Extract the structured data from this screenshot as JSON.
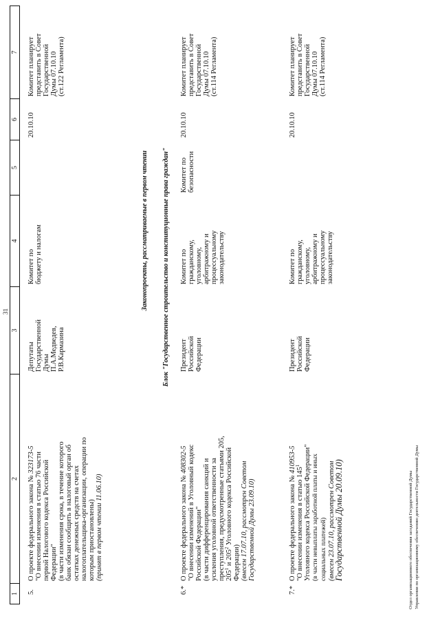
{
  "page_number": "31",
  "header": [
    "1",
    "2",
    "3",
    "4",
    "5",
    "6",
    "7"
  ],
  "section_heading": "Законопроекты, рассматриваемые в первом чтении",
  "block_heading": "Блок \"Государственное строительство и конституционные права граждан\"",
  "rows": [
    {
      "num": "5.",
      "bill": [
        [
          {
            "t": "О проекте федерального закона № "
          },
          {
            "t": "323173-5",
            "s": "i"
          }
        ],
        [
          {
            "t": "\"О внесении изменения в статью 76 части"
          }
        ],
        [
          {
            "t": "первой Налогового кодекса Российской"
          }
        ],
        [
          {
            "t": "Федерации\""
          }
        ],
        [
          {
            "t": "(в части изменения срока, в течение которого"
          }
        ],
        [
          {
            "t": "банк обязан сообщить в налоговый орган об"
          }
        ],
        [
          {
            "t": "остатках денежных средств на счетах"
          }
        ],
        [
          {
            "t": "налогоплательщика-организации, операции по"
          }
        ],
        [
          {
            "t": "которым приостановлены)"
          }
        ],
        [
          {
            "t": "(принят в первом чтении 11.06.10)",
            "s": "i"
          }
        ]
      ],
      "author": [
        "Депутаты",
        "Государственной",
        "Думы",
        "П.А.Медведев,",
        "Р.В.Кармазина"
      ],
      "committee": [
        "Комитет по",
        "бюджету и налогам"
      ],
      "co_committee": [],
      "date": [
        "20.10.10"
      ],
      "note": [
        "Комитет планирует",
        "представить в Совет",
        "Государственной",
        "Думы 07.10.10",
        "(ст.122 Регламента)"
      ]
    },
    {
      "num": "6.*",
      "bill": [
        [
          {
            "t": "О проекте федерального закона № "
          },
          {
            "t": "408302-5",
            "s": "i"
          }
        ],
        [
          {
            "t": "\"О внесении изменений в Уголовный кодекс"
          }
        ],
        [
          {
            "t": "Российской Федерации\""
          }
        ],
        [
          {
            "t": "(в части дифференцирования санкций и"
          }
        ],
        [
          {
            "t": "усиления уголовной ответственности за"
          }
        ],
        [
          {
            "t": "преступления, предусмотренные статьями 205,"
          }
        ],
        [
          {
            "t": "205"
          },
          {
            "t": "1",
            "s": "sup"
          },
          {
            "t": " и 205"
          },
          {
            "t": "2",
            "s": "sup"
          },
          {
            "t": " Уголовного кодекса Российской"
          }
        ],
        [
          {
            "t": "Федерации)"
          }
        ],
        [
          {
            "t": "(внесен 17.07.10, рассмотрен Советом",
            "s": "i"
          }
        ],
        [
          {
            "t": "Государственной Думы 23.09.10)",
            "s": "i"
          }
        ]
      ],
      "author": [
        "Президент",
        "Российской",
        "Федерации"
      ],
      "committee": [
        "Комитет по",
        "гражданскому,",
        "уголовному,",
        "арбитражному и",
        "процессуальному",
        "законодательству"
      ],
      "co_committee": [
        "Комитет по",
        "безопасности"
      ],
      "date": [
        "20.10.10"
      ],
      "note": [
        "Комитет планирует",
        "представить в Совет",
        "Государственной",
        "Думы 07.10.10",
        "(ст.114 Регламента)"
      ]
    },
    {
      "num": "7.*",
      "bill": [
        [
          {
            "t": "О проекте федерального закона № "
          },
          {
            "t": "410953-5",
            "s": "i"
          }
        ],
        [
          {
            "t": "\"О внесении изменения в статью 145"
          },
          {
            "t": "1",
            "s": "sup"
          }
        ],
        [
          {
            "t": "Уголовного кодекса Российской Федерации\""
          }
        ],
        [
          {
            "t": "(в части невыплаты заработной платы и иных",
            "s": "small"
          }
        ],
        [
          {
            "t": "социальных платежей)",
            "s": "small"
          }
        ],
        [
          {
            "t": "(внесен 23.07.10, рассмотрен Советом",
            "s": "i"
          }
        ],
        [
          {
            "t": "Государственной Думы 20.09.10)",
            "s": "big"
          }
        ]
      ],
      "author": [
        "Президент",
        "Российской",
        "Федерации"
      ],
      "committee": [
        "Комитет по",
        "гражданскому,",
        "уголовному,",
        "арбитражному и",
        "процессуальному",
        "законодательству"
      ],
      "co_committee": [],
      "date": [
        "20.10.10"
      ],
      "note": [
        "Комитет планирует",
        "представить в Совет",
        "Государственной",
        "Думы 07.10.10",
        "(ст.114 Регламента)"
      ]
    }
  ],
  "footer": [
    "Отдел организационного обеспечения заседаний Государственной Думы",
    "Управления по организационному обеспечению деятельности Государственной Думы"
  ]
}
